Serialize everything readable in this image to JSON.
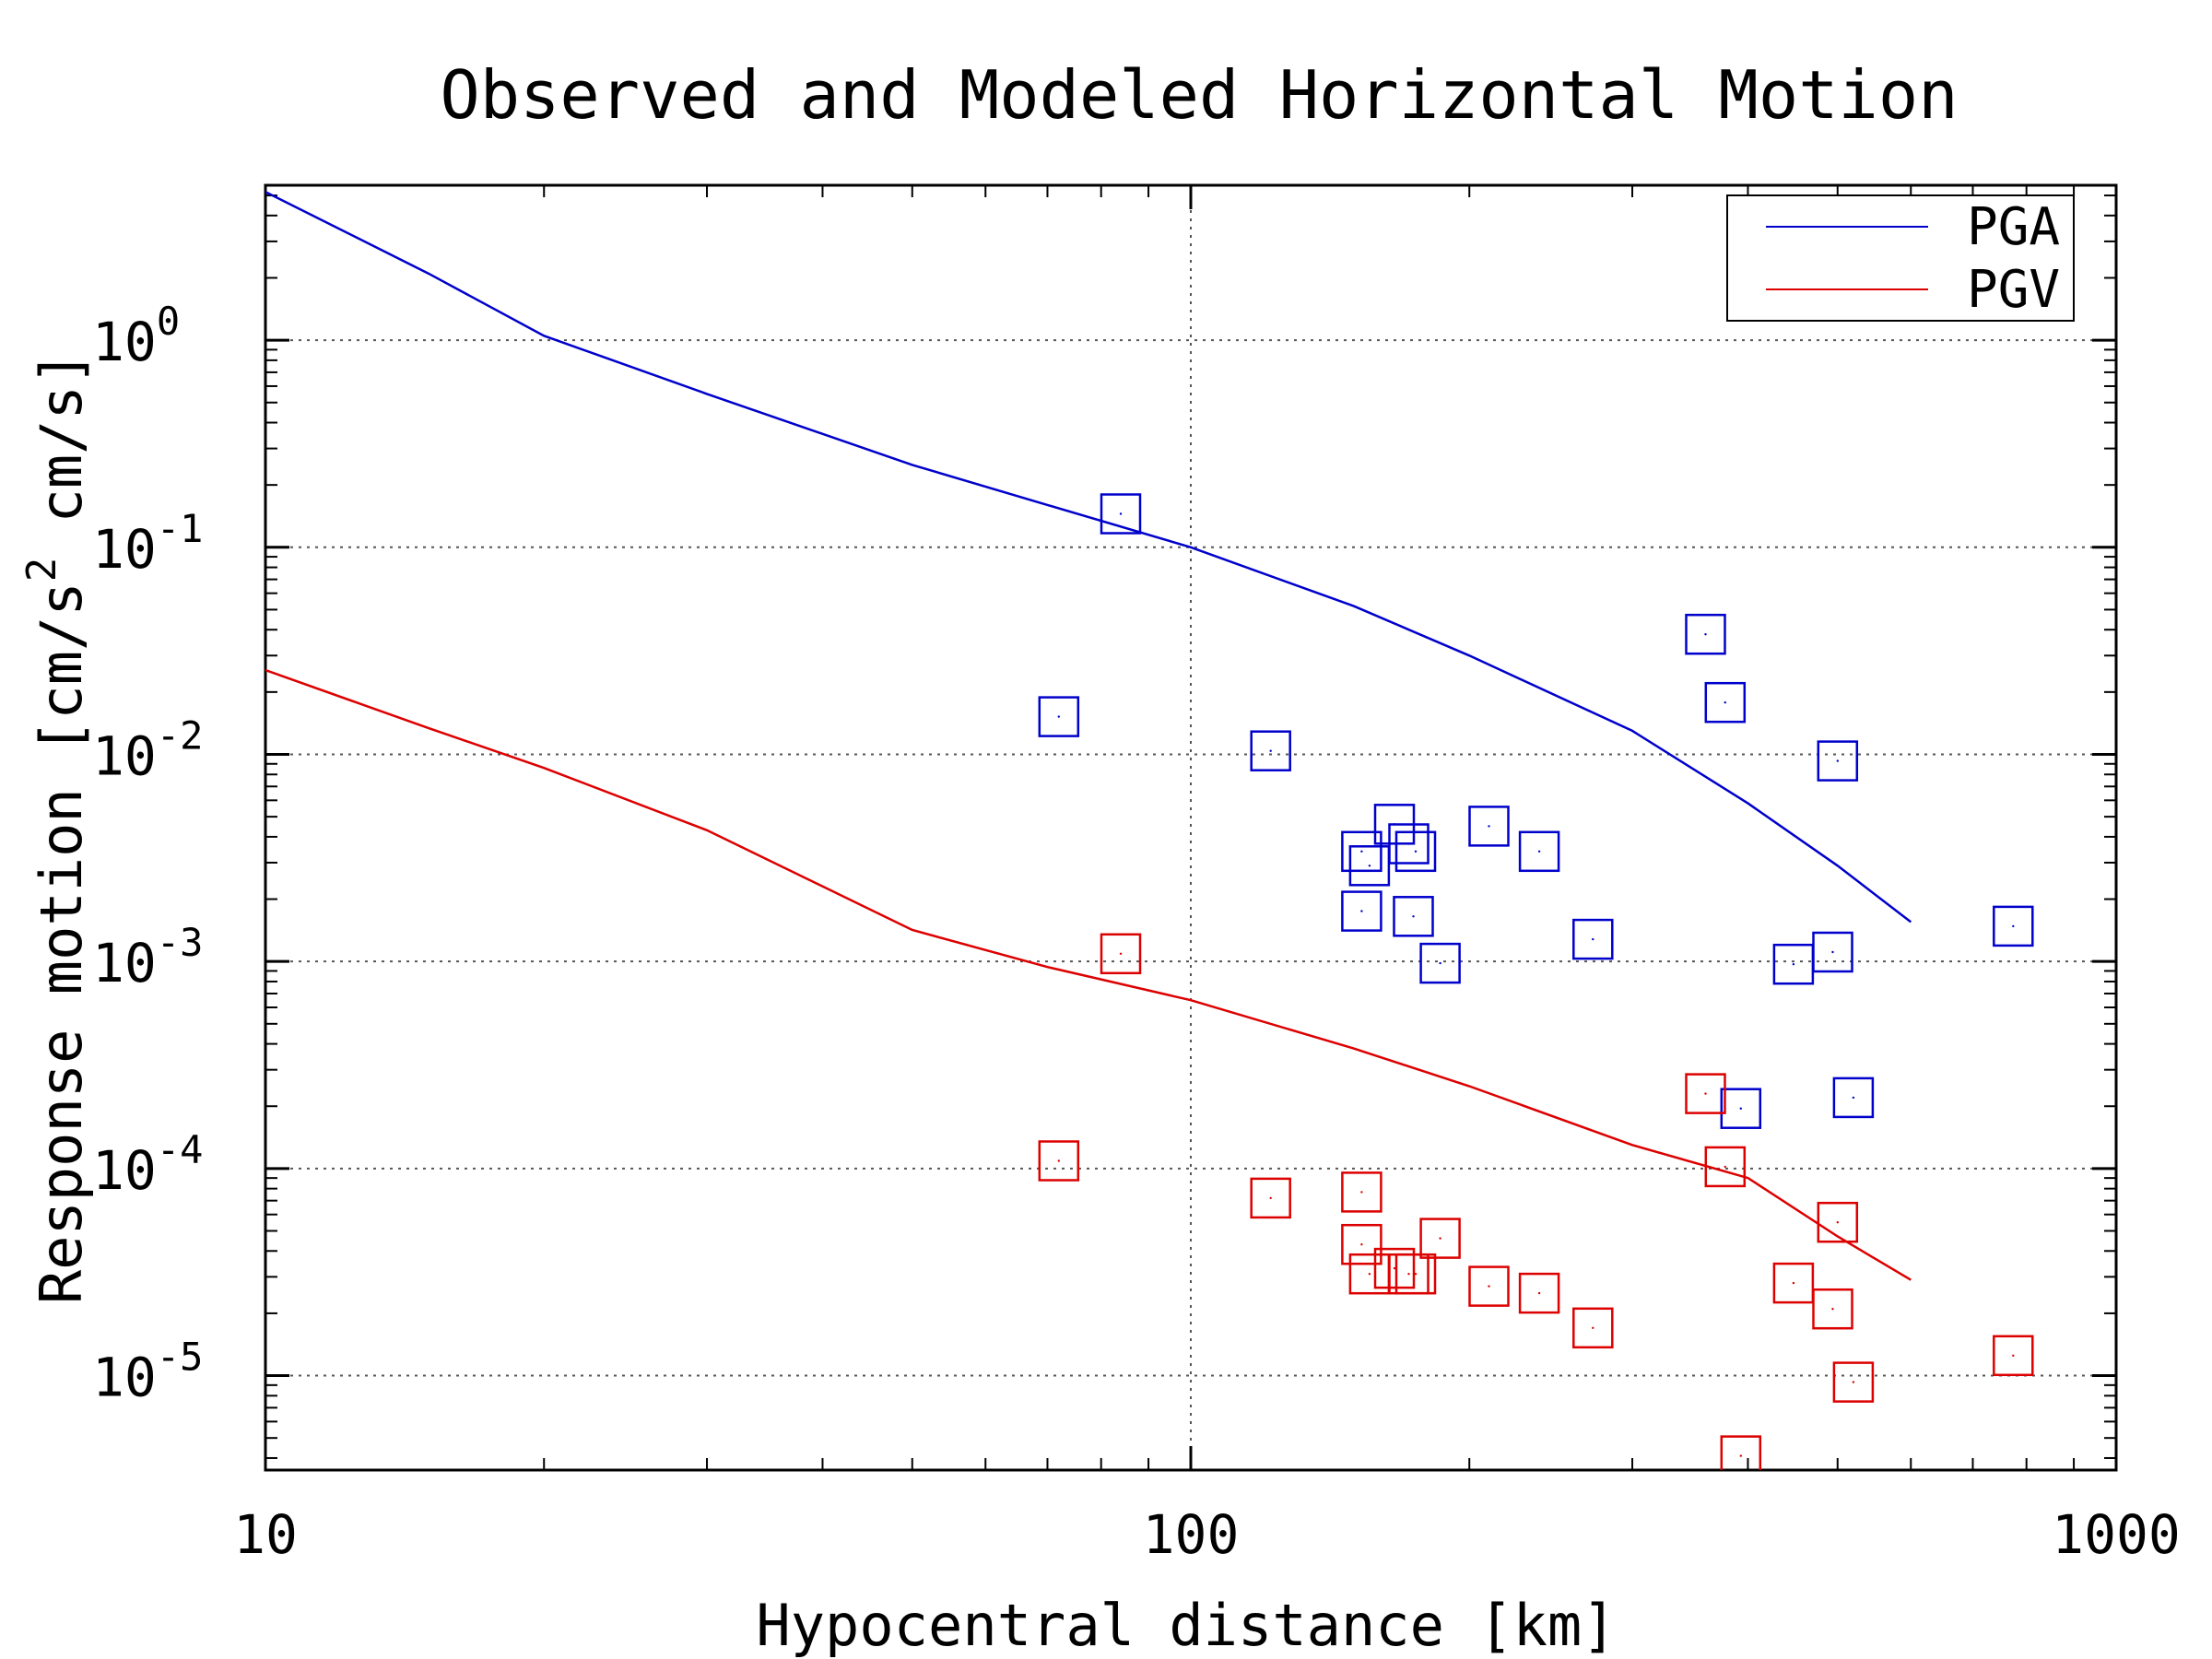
{
  "chart_data": {
    "type": "scatter",
    "title": "Observed and Modeled Horizontal Motion",
    "xlabel": "Hypocentral distance [km]",
    "ylabel": {
      "prefix": "Response motion [cm/s",
      "exponent": "2",
      "suffix": " cm/s]"
    },
    "x_scale": "log",
    "y_scale": "log",
    "xlim": [
      10,
      1000
    ],
    "ylim": [
      3.5e-06,
      5.6
    ],
    "grid": true,
    "legend_position": "top-right",
    "x_ticks": [
      {
        "value": 10,
        "label": "10"
      },
      {
        "value": 100,
        "label": "100"
      },
      {
        "value": 1000,
        "label": "1000"
      }
    ],
    "y_ticks": [
      {
        "value": 1,
        "base": "10",
        "exp": "0"
      },
      {
        "value": 0.1,
        "base": "10",
        "exp": "-1"
      },
      {
        "value": 0.01,
        "base": "10",
        "exp": "-2"
      },
      {
        "value": 0.001,
        "base": "10",
        "exp": "-3"
      },
      {
        "value": 0.0001,
        "base": "10",
        "exp": "-4"
      },
      {
        "value": 1e-05,
        "base": "10",
        "exp": "-5"
      }
    ],
    "series": [
      {
        "name": "PGA",
        "color": "#0000cc",
        "line": {
          "x": [
            10,
            15,
            20,
            30,
            50,
            70,
            100,
            150,
            200,
            300,
            400,
            500,
            600
          ],
          "y": [
            5.2,
            2.1,
            1.05,
            0.55,
            0.25,
            0.16,
            0.1,
            0.052,
            0.03,
            0.013,
            0.0058,
            0.0029,
            0.00155
          ]
        },
        "points": [
          {
            "x": 84,
            "y": 0.145
          },
          {
            "x": 72,
            "y": 0.0152
          },
          {
            "x": 122,
            "y": 0.0104
          },
          {
            "x": 153,
            "y": 0.0034
          },
          {
            "x": 153,
            "y": 0.00175
          },
          {
            "x": 156,
            "y": 0.0029
          },
          {
            "x": 166,
            "y": 0.0046
          },
          {
            "x": 172,
            "y": 0.0037
          },
          {
            "x": 175,
            "y": 0.0034
          },
          {
            "x": 174,
            "y": 0.00165
          },
          {
            "x": 186,
            "y": 0.00098
          },
          {
            "x": 210,
            "y": 0.0045
          },
          {
            "x": 238,
            "y": 0.0034
          },
          {
            "x": 272,
            "y": 0.00128
          },
          {
            "x": 360,
            "y": 0.038
          },
          {
            "x": 378,
            "y": 0.0178
          },
          {
            "x": 393,
            "y": 0.000195
          },
          {
            "x": 448,
            "y": 0.00097
          },
          {
            "x": 494,
            "y": 0.00111
          },
          {
            "x": 500,
            "y": 0.0093
          },
          {
            "x": 520,
            "y": 0.00022
          },
          {
            "x": 774,
            "y": 0.00148
          }
        ]
      },
      {
        "name": "PGV",
        "color": "#dd0000",
        "line": {
          "x": [
            10,
            15,
            20,
            30,
            50,
            70,
            100,
            150,
            200,
            300,
            400,
            500,
            600
          ],
          "y": [
            0.0255,
            0.0134,
            0.0086,
            0.0043,
            0.00142,
            0.00094,
            0.00065,
            0.00038,
            0.00025,
            0.00013,
            9e-05,
            4.7e-05,
            2.9e-05
          ]
        },
        "points": [
          {
            "x": 84,
            "y": 0.00109
          },
          {
            "x": 72,
            "y": 0.000109
          },
          {
            "x": 122,
            "y": 7.2e-05
          },
          {
            "x": 153,
            "y": 7.7e-05
          },
          {
            "x": 153,
            "y": 4.3e-05
          },
          {
            "x": 156,
            "y": 3.1e-05
          },
          {
            "x": 166,
            "y": 3.3e-05
          },
          {
            "x": 172,
            "y": 3.1e-05
          },
          {
            "x": 175,
            "y": 3.1e-05
          },
          {
            "x": 186,
            "y": 4.6e-05
          },
          {
            "x": 210,
            "y": 2.7e-05
          },
          {
            "x": 238,
            "y": 2.5e-05
          },
          {
            "x": 272,
            "y": 1.7e-05
          },
          {
            "x": 360,
            "y": 0.00023
          },
          {
            "x": 378,
            "y": 0.000102
          },
          {
            "x": 393,
            "y": 4.1e-06
          },
          {
            "x": 448,
            "y": 2.8e-05
          },
          {
            "x": 494,
            "y": 2.1e-05
          },
          {
            "x": 500,
            "y": 5.5e-05
          },
          {
            "x": 520,
            "y": 9.3e-06
          },
          {
            "x": 774,
            "y": 1.25e-05
          }
        ]
      }
    ]
  }
}
